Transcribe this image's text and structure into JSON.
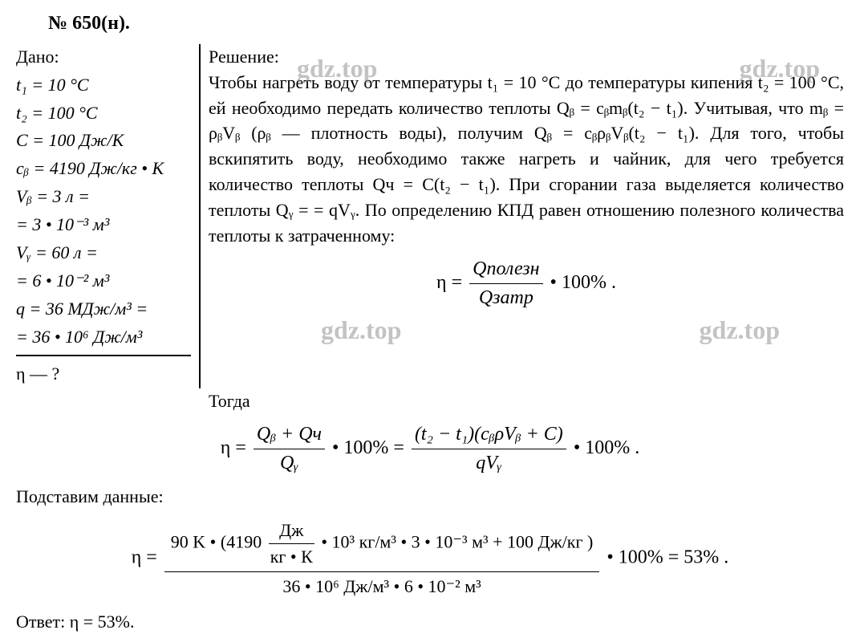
{
  "problem_number": "№ 650(н).",
  "watermark": "gdz.top",
  "given": {
    "title": "Дано:",
    "lines": [
      "t₁ = 10 °C",
      "t₂ = 100 °C",
      "C = 100 Дж/К",
      "cᵦ = 4190 Дж/кг • К",
      "Vᵦ = 3 л =",
      "= 3 • 10⁻³ м³",
      "Vᵧ = 60 л =",
      "= 6 • 10⁻² м³",
      "q = 36 МДж/м³ =",
      "= 36 • 10⁶ Дж/м³"
    ],
    "find": "η — ?"
  },
  "solution": {
    "title": "Решение:",
    "text": "Чтобы нагреть воду от температуры t₁ = 10 °C до температуры кипения t₂ = 100 °C, ей необходимо передать количество теплоты Qᵦ = cᵦmᵦ(t₂ − t₁). Учитывая, что mᵦ = ρᵦVᵦ (ρᵦ — плотность воды), получим Qᵦ = cᵦρᵦVᵦ(t₂ − t₁). Для того, чтобы вскипятить воду, необходимо также нагреть и чайник, для чего требуется количество теплоты Qч = C(t₂ − t₁). При сгорании газа выделяется количество теплоты Qᵧ = = qVᵧ. По определению КПД равен отношению полезного количества теплоты к затраченному:"
  },
  "formula1": {
    "left": "η =",
    "num": "Qполезн",
    "den": "Qзатр",
    "right": " • 100% ."
  },
  "then_text": "Тогда",
  "formula2": {
    "left": "η = ",
    "frac1_num": "Qᵦ + Qч",
    "frac1_den": "Qᵧ",
    "mid": " • 100% = ",
    "frac2_num": "(t₂ − t₁)(cᵦρVᵦ + C)",
    "frac2_den": "qVᵧ",
    "right": " • 100% ."
  },
  "substitute_text": "Подставим данные:",
  "formula3": {
    "left": "η = ",
    "num_part1": "90 K • (4190 ",
    "small_num": "Дж",
    "small_den": "кг • К",
    "num_part2": " • 10³ кг/м³ • 3 • 10⁻³ м³ + 100 Дж/кг )",
    "den": "36 • 10⁶ Дж/м³ • 6 • 10⁻² м³",
    "right": " • 100% = 53% ."
  },
  "answer": "Ответ: η = 53%.",
  "colors": {
    "text": "#000000",
    "background": "#ffffff",
    "watermark": "#888888"
  }
}
